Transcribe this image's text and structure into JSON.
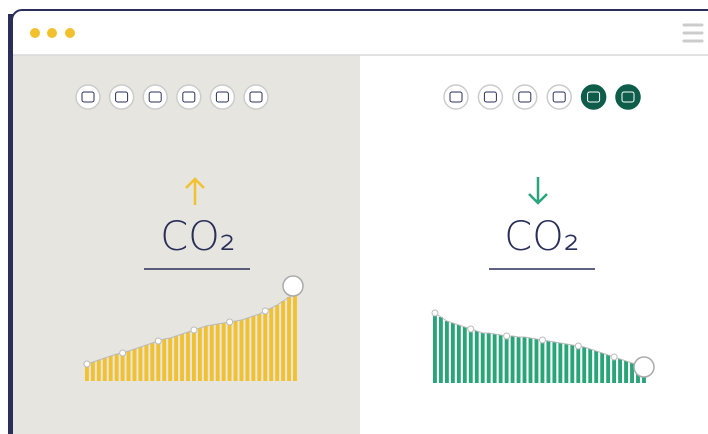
{
  "panels": [
    {
      "label": "CO₂",
      "chart": {
        "type": "bar",
        "color": "#f2c12e",
        "values": [
          17,
          19,
          21,
          23,
          25,
          27,
          28,
          30,
          32,
          34,
          36,
          38,
          40,
          42,
          43,
          45,
          47,
          49,
          51,
          53,
          55,
          56,
          57,
          58,
          59,
          60,
          61,
          63,
          65,
          67,
          70,
          73,
          76,
          80,
          84,
          88
        ]
      }
    },
    {
      "label": "CO₂",
      "chart": {
        "type": "bar",
        "color": "#2aa57a",
        "values": [
          70,
          66,
          62,
          60,
          58,
          56,
          54,
          52,
          50,
          50,
          49,
          48,
          47,
          47,
          46,
          46,
          45,
          44,
          43,
          42,
          41,
          40,
          39,
          38,
          37,
          36,
          34,
          32,
          30,
          28,
          26,
          24,
          22,
          20,
          18,
          16
        ]
      }
    }
  ]
}
